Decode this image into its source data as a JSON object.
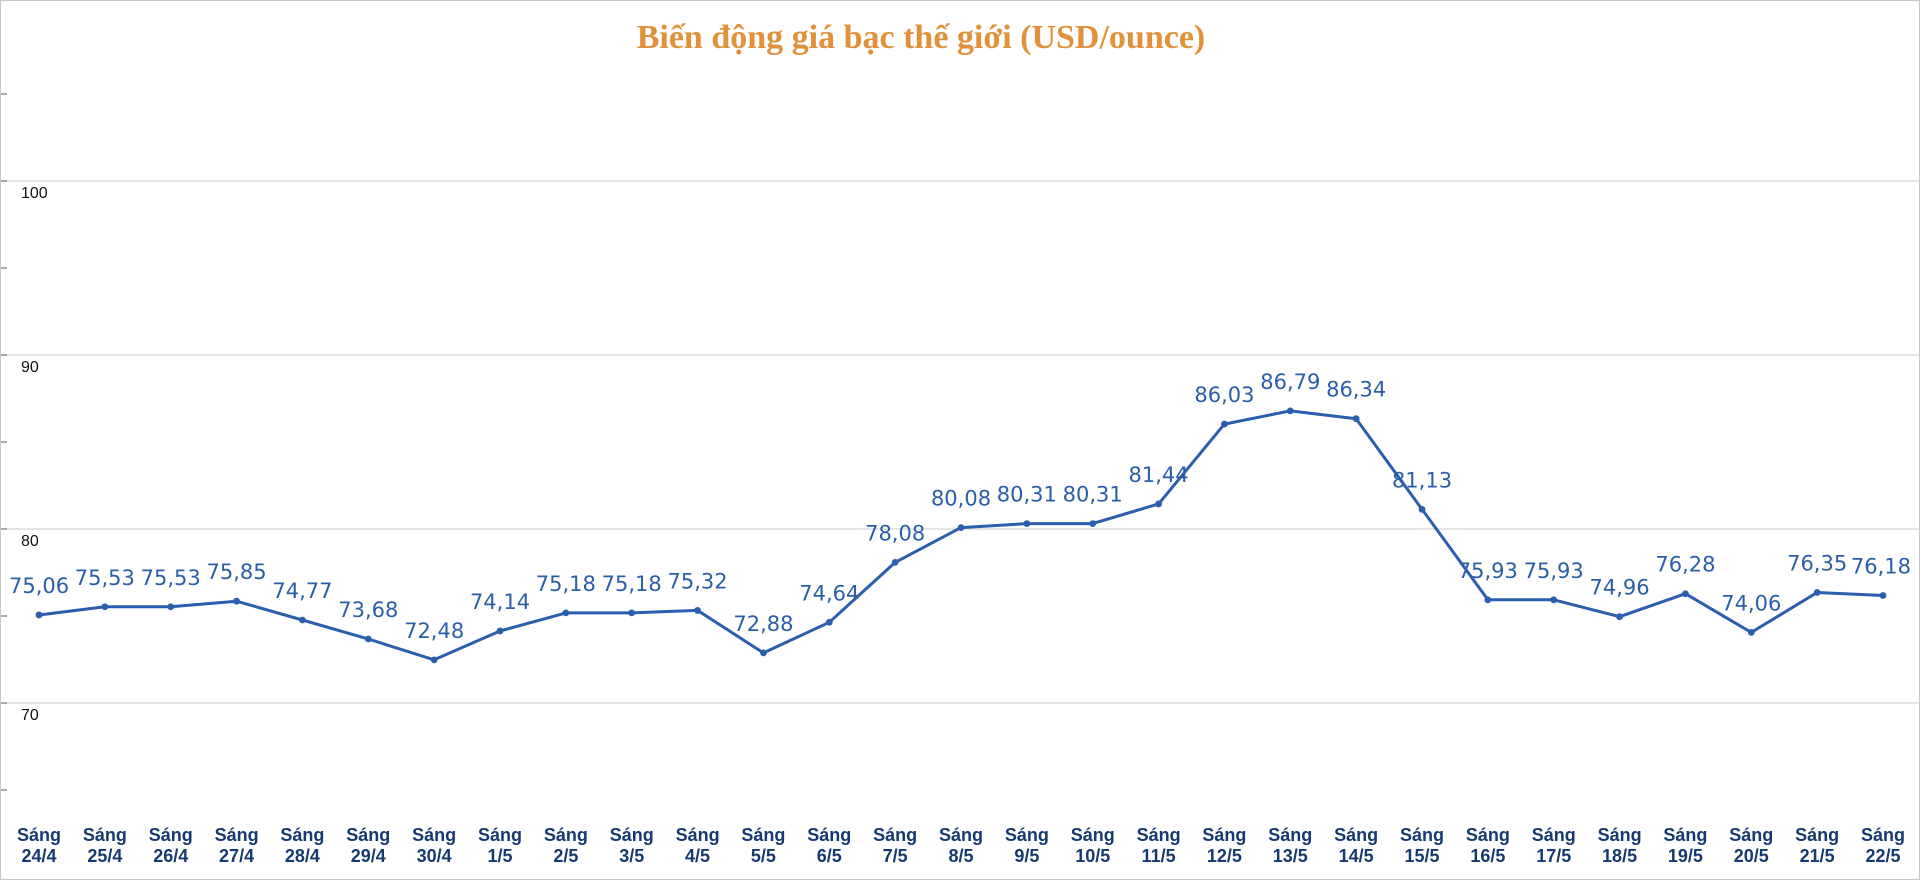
{
  "chart_data": {
    "type": "line",
    "title": "Biến động giá bạc thế giới (USD/ounce)",
    "xlabel": "",
    "ylabel": "",
    "ylim": [
      60,
      110
    ],
    "yticks": [
      70,
      80,
      90,
      100
    ],
    "grid": true,
    "legend": "none",
    "colors": {
      "title": "#e0913a",
      "line": "#2b5ead",
      "data_label": "#2a5ea8",
      "x_label": "#163a70",
      "grid": "#d3d3d3"
    },
    "categories": [
      [
        "Sáng",
        "24/4"
      ],
      [
        "Sáng",
        "25/4"
      ],
      [
        "Sáng",
        "26/4"
      ],
      [
        "Sáng",
        "27/4"
      ],
      [
        "Sáng",
        "28/4"
      ],
      [
        "Sáng",
        "29/4"
      ],
      [
        "Sáng",
        "30/4"
      ],
      [
        "Sáng",
        "1/5"
      ],
      [
        "Sáng",
        "2/5"
      ],
      [
        "Sáng",
        "3/5"
      ],
      [
        "Sáng",
        "4/5"
      ],
      [
        "Sáng",
        "5/5"
      ],
      [
        "Sáng",
        "6/5"
      ],
      [
        "Sáng",
        "7/5"
      ],
      [
        "Sáng",
        "8/5"
      ],
      [
        "Sáng",
        "9/5"
      ],
      [
        "Sáng",
        "10/5"
      ],
      [
        "Sáng",
        "11/5"
      ],
      [
        "Sáng",
        "12/5"
      ],
      [
        "Sáng",
        "13/5"
      ],
      [
        "Sáng",
        "14/5"
      ],
      [
        "Sáng",
        "15/5"
      ],
      [
        "Sáng",
        "16/5"
      ],
      [
        "Sáng",
        "17/5"
      ],
      [
        "Sáng",
        "18/5"
      ],
      [
        "Sáng",
        "19/5"
      ],
      [
        "Sáng",
        "20/5"
      ],
      [
        "Sáng",
        "21/5"
      ],
      [
        "Sáng",
        "22/5"
      ]
    ],
    "values": [
      75.06,
      75.53,
      75.53,
      75.85,
      74.77,
      73.68,
      72.48,
      74.14,
      75.18,
      75.18,
      75.32,
      72.88,
      74.64,
      78.08,
      80.08,
      80.31,
      80.31,
      81.44,
      86.03,
      86.79,
      86.34,
      81.13,
      75.93,
      75.93,
      74.96,
      76.28,
      74.06,
      76.35,
      76.18
    ],
    "value_labels": [
      "75,06",
      "75,53",
      "75,53",
      "75,85",
      "74,77",
      "73,68",
      "72,48",
      "74,14",
      "75,18",
      "75,18",
      "75,32",
      "72,88",
      "74,64",
      "78,08",
      "80,08",
      "80,31",
      "80,31",
      "81,44",
      "86,03",
      "86,79",
      "86,34",
      "81,13",
      "75,93",
      "75,93",
      "74,96",
      "76,28",
      "74,06",
      "76,35",
      "76,18"
    ]
  }
}
